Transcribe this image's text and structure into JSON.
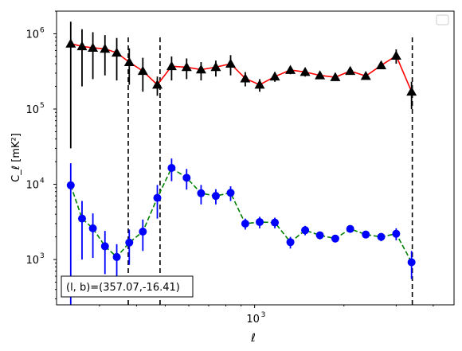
{
  "chart_data": {
    "type": "scatter",
    "title": "",
    "xlabel": "ℓ",
    "ylabel": "C_ℓ  [mK²]",
    "xscale": "log",
    "yscale": "log",
    "xlim": [
      215,
      4700
    ],
    "ylim": [
      250,
      2000000
    ],
    "x_tick_labels": [
      {
        "value": 1000,
        "base": "10",
        "exp": "3"
      }
    ],
    "y_tick_labels": [
      {
        "value": 1000,
        "base": "10",
        "exp": "3"
      },
      {
        "value": 10000,
        "base": "10",
        "exp": "4"
      },
      {
        "value": 100000,
        "base": "10",
        "exp": "5"
      },
      {
        "value": 1000000,
        "base": "10",
        "exp": "6"
      }
    ],
    "vertical_lines": [
      375,
      480,
      3400
    ],
    "annotation": "(l, b)=(357.07,-16.41)",
    "legend": "top-right (empty)",
    "grid": false,
    "series": [
      {
        "color": "#ff0000",
        "marker": "triangle",
        "marker_color": "#000000",
        "line_style": "solid",
        "points": [
          {
            "x": 240,
            "y": 740000,
            "lo": 30000,
            "hi": 1450000
          },
          {
            "x": 262,
            "y": 680000,
            "lo": 200000,
            "hi": 1150000
          },
          {
            "x": 285,
            "y": 650000,
            "lo": 250000,
            "hi": 1050000
          },
          {
            "x": 313,
            "y": 630000,
            "lo": 280000,
            "hi": 960000
          },
          {
            "x": 343,
            "y": 560000,
            "lo": 240000,
            "hi": 880000
          },
          {
            "x": 378,
            "y": 420000,
            "lo": 210000,
            "hi": 640000
          },
          {
            "x": 420,
            "y": 320000,
            "lo": 170000,
            "hi": 480000
          },
          {
            "x": 470,
            "y": 210000,
            "lo": 150000,
            "hi": 270000
          },
          {
            "x": 525,
            "y": 370000,
            "lo": 240000,
            "hi": 500000
          },
          {
            "x": 590,
            "y": 360000,
            "lo": 250000,
            "hi": 470000
          },
          {
            "x": 660,
            "y": 335000,
            "lo": 240000,
            "hi": 420000
          },
          {
            "x": 740,
            "y": 360000,
            "lo": 270000,
            "hi": 440000
          },
          {
            "x": 830,
            "y": 400000,
            "lo": 280000,
            "hi": 520000
          },
          {
            "x": 930,
            "y": 255000,
            "lo": 200000,
            "hi": 310000
          },
          {
            "x": 1040,
            "y": 210000,
            "lo": 170000,
            "hi": 250000
          },
          {
            "x": 1170,
            "y": 270000,
            "lo": 230000,
            "hi": 310000
          },
          {
            "x": 1320,
            "y": 330000,
            "lo": 290000,
            "hi": 370000
          },
          {
            "x": 1480,
            "y": 310000,
            "lo": 270000,
            "hi": 350000
          },
          {
            "x": 1660,
            "y": 280000,
            "lo": 250000,
            "hi": 310000
          },
          {
            "x": 1870,
            "y": 265000,
            "lo": 240000,
            "hi": 290000
          },
          {
            "x": 2100,
            "y": 320000,
            "lo": 290000,
            "hi": 350000
          },
          {
            "x": 2370,
            "y": 275000,
            "lo": 250000,
            "hi": 300000
          },
          {
            "x": 2670,
            "y": 380000,
            "lo": 340000,
            "hi": 420000
          },
          {
            "x": 3000,
            "y": 510000,
            "lo": 400000,
            "hi": 620000
          },
          {
            "x": 3380,
            "y": 170000,
            "lo": 100000,
            "hi": 230000
          }
        ]
      },
      {
        "color": "#008000",
        "marker": "circle",
        "marker_color": "#0000ff",
        "line_style": "dashed",
        "points": [
          {
            "x": 240,
            "y": 9700,
            "lo": 250,
            "hi": 19000
          },
          {
            "x": 262,
            "y": 3500,
            "lo": 1000,
            "hi": 6000
          },
          {
            "x": 285,
            "y": 2600,
            "lo": 1050,
            "hi": 4100
          },
          {
            "x": 313,
            "y": 1500,
            "lo": 640,
            "hi": 2400
          },
          {
            "x": 343,
            "y": 1080,
            "lo": 590,
            "hi": 1600
          },
          {
            "x": 378,
            "y": 1680,
            "lo": 850,
            "hi": 2500
          },
          {
            "x": 420,
            "y": 2350,
            "lo": 1300,
            "hi": 3400
          },
          {
            "x": 470,
            "y": 6600,
            "lo": 3500,
            "hi": 9800
          },
          {
            "x": 525,
            "y": 16500,
            "lo": 11000,
            "hi": 22000
          },
          {
            "x": 590,
            "y": 12200,
            "lo": 8500,
            "hi": 16000
          },
          {
            "x": 660,
            "y": 7600,
            "lo": 5400,
            "hi": 9800
          },
          {
            "x": 740,
            "y": 7000,
            "lo": 5400,
            "hi": 8600
          },
          {
            "x": 830,
            "y": 7700,
            "lo": 6000,
            "hi": 9400
          },
          {
            "x": 930,
            "y": 3000,
            "lo": 2500,
            "hi": 3500
          },
          {
            "x": 1040,
            "y": 3150,
            "lo": 2600,
            "hi": 3700
          },
          {
            "x": 1170,
            "y": 3100,
            "lo": 2600,
            "hi": 3600
          },
          {
            "x": 1320,
            "y": 1700,
            "lo": 1400,
            "hi": 2000
          },
          {
            "x": 1480,
            "y": 2450,
            "lo": 2100,
            "hi": 2800
          },
          {
            "x": 1660,
            "y": 2100,
            "lo": 1850,
            "hi": 2350
          },
          {
            "x": 1870,
            "y": 1900,
            "lo": 1700,
            "hi": 2100
          },
          {
            "x": 2100,
            "y": 2550,
            "lo": 2300,
            "hi": 2800
          },
          {
            "x": 2370,
            "y": 2150,
            "lo": 1950,
            "hi": 2350
          },
          {
            "x": 2670,
            "y": 2000,
            "lo": 1750,
            "hi": 2250
          },
          {
            "x": 3000,
            "y": 2200,
            "lo": 1800,
            "hi": 2600
          },
          {
            "x": 3380,
            "y": 920,
            "lo": 550,
            "hi": 1300
          }
        ]
      }
    ]
  }
}
